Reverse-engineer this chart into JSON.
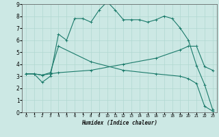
{
  "xlabel": "Humidex (Indice chaleur)",
  "bg_color": "#cce8e4",
  "grid_color": "#b0d8d0",
  "line_color": "#1a7a6a",
  "xlim": [
    -0.5,
    23.5
  ],
  "ylim": [
    0,
    9
  ],
  "x_ticks": [
    0,
    1,
    2,
    3,
    4,
    5,
    6,
    7,
    8,
    9,
    10,
    11,
    12,
    13,
    14,
    15,
    16,
    17,
    18,
    19,
    20,
    21,
    22,
    23
  ],
  "y_ticks": [
    0,
    1,
    2,
    3,
    4,
    5,
    6,
    7,
    8,
    9
  ],
  "line1_x": [
    0,
    1,
    2,
    3,
    4,
    5,
    6,
    7,
    8,
    9,
    10,
    11,
    12,
    13,
    14,
    15,
    16,
    17,
    18,
    19,
    20,
    21,
    22,
    23
  ],
  "line1_y": [
    3.2,
    3.2,
    2.5,
    3.0,
    6.5,
    6.0,
    7.8,
    7.8,
    7.5,
    8.5,
    9.2,
    8.5,
    7.7,
    7.7,
    7.7,
    7.5,
    7.7,
    8.0,
    7.8,
    7.0,
    6.0,
    3.9,
    2.3,
    0.2
  ],
  "line2_x": [
    0,
    1,
    2,
    3,
    4,
    8,
    12,
    16,
    19,
    20,
    21,
    22,
    23
  ],
  "line2_y": [
    3.2,
    3.2,
    3.1,
    3.2,
    3.3,
    3.5,
    4.0,
    4.5,
    5.2,
    5.5,
    5.5,
    3.8,
    3.5
  ],
  "line3_x": [
    0,
    1,
    2,
    3,
    4,
    8,
    12,
    16,
    19,
    20,
    21,
    22,
    23
  ],
  "line3_y": [
    3.2,
    3.2,
    3.1,
    3.3,
    5.5,
    4.2,
    3.5,
    3.2,
    3.0,
    2.8,
    2.4,
    0.5,
    0.1
  ]
}
